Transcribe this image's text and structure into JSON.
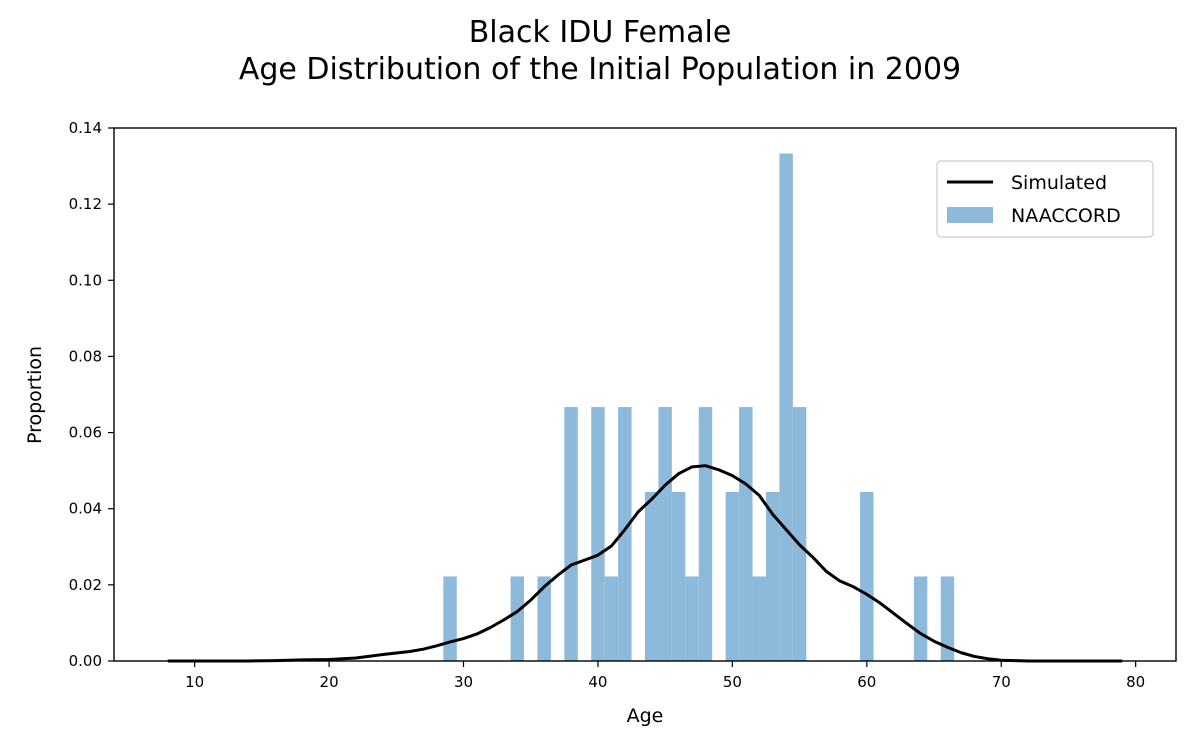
{
  "chart_data": {
    "type": "bar",
    "title": "Black IDU Female",
    "subtitle": "Age Distribution of the Initial Population in 2009",
    "xlabel": "Age",
    "ylabel": "Proportion",
    "xlim": [
      4,
      83
    ],
    "ylim": [
      0,
      0.14
    ],
    "xticks": [
      10,
      20,
      30,
      40,
      50,
      60,
      70,
      80
    ],
    "yticks": [
      0.0,
      0.02,
      0.04,
      0.06,
      0.08,
      0.1,
      0.12,
      0.14
    ],
    "ytick_labels": [
      "0.00",
      "0.02",
      "0.04",
      "0.06",
      "0.08",
      "0.10",
      "0.12",
      "0.14"
    ],
    "grid": false,
    "legend_position": "top-right",
    "colors": {
      "simulated": "#000000",
      "naaccord": "#8db9da"
    },
    "series": [
      {
        "name": "Simulated",
        "kind": "line",
        "x": [
          8,
          10,
          12,
          14,
          16,
          18,
          20,
          22,
          24,
          26,
          27,
          28,
          29,
          30,
          31,
          32,
          33,
          34,
          35,
          36,
          37,
          38,
          39,
          40,
          41,
          42,
          43,
          44,
          45,
          46,
          47,
          48,
          49,
          50,
          51,
          52,
          53,
          54,
          55,
          56,
          57,
          58,
          59,
          60,
          61,
          62,
          63,
          64,
          65,
          66,
          67,
          68,
          69,
          70,
          71,
          72,
          74,
          76,
          79
        ],
        "y": [
          0.0,
          0.0,
          0.0,
          0.0,
          0.0001,
          0.0003,
          0.0004,
          0.0008,
          0.0017,
          0.0025,
          0.0031,
          0.004,
          0.005,
          0.0059,
          0.0071,
          0.0088,
          0.0108,
          0.013,
          0.016,
          0.0195,
          0.0225,
          0.0252,
          0.0265,
          0.0278,
          0.0302,
          0.0345,
          0.0392,
          0.0425,
          0.0462,
          0.0492,
          0.051,
          0.0513,
          0.0502,
          0.0487,
          0.0465,
          0.0435,
          0.0385,
          0.0345,
          0.0305,
          0.0272,
          0.0235,
          0.021,
          0.0195,
          0.0175,
          0.0152,
          0.0125,
          0.0098,
          0.0072,
          0.0052,
          0.0036,
          0.0022,
          0.0012,
          0.0006,
          0.0002,
          0.0001,
          0.0,
          0.0,
          0.0,
          0.0
        ]
      },
      {
        "name": "NAACCORD",
        "kind": "bar",
        "bin_width": 1,
        "x": [
          29,
          34,
          36,
          38,
          40,
          41,
          42,
          44,
          45,
          46,
          47,
          48,
          50,
          51,
          52,
          53,
          54,
          55,
          60,
          64,
          66
        ],
        "y": [
          0.0222,
          0.0222,
          0.0222,
          0.0667,
          0.0667,
          0.0222,
          0.0667,
          0.0444,
          0.0667,
          0.0444,
          0.0222,
          0.0667,
          0.0444,
          0.0667,
          0.0222,
          0.0444,
          0.1333,
          0.0667,
          0.0444,
          0.0222,
          0.0222
        ]
      }
    ]
  }
}
